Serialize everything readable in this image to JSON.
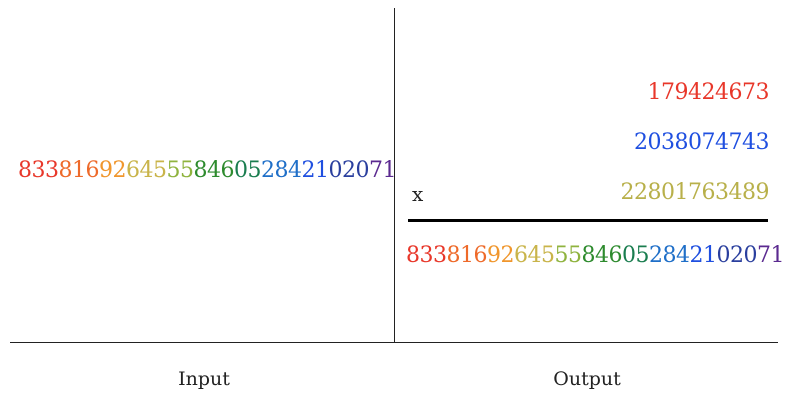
{
  "input": {
    "number": "83381692645558460528421 02071",
    "caption": "Input"
  },
  "output": {
    "factors": [
      "179424673",
      "2038074743",
      "22801763489"
    ],
    "operator": "x",
    "product": "833816926455584605284210 2071",
    "caption": "Output"
  },
  "colors": {
    "factor_1": "#e8372a",
    "factor_2": "#1f4fe0",
    "factor_3": "#b8b04a",
    "rainbow": [
      "#e8372a",
      "#ee6a2a",
      "#f0962c",
      "#c9b44a",
      "#8fb33e",
      "#2e8b2e",
      "#1a7d4f",
      "#1f6fc8",
      "#1f4fe0",
      "#2a3f9e",
      "#5b2a90"
    ]
  }
}
